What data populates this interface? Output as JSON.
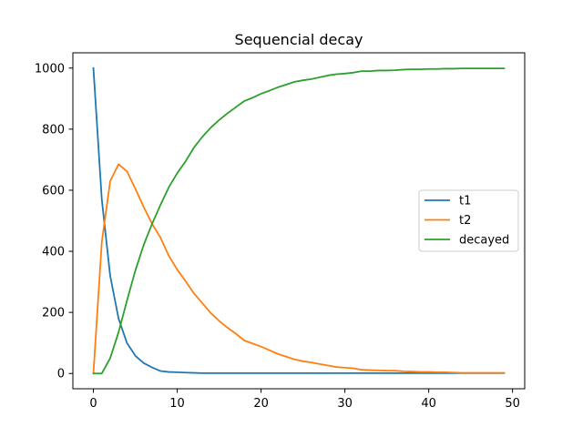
{
  "chart_data": {
    "type": "line",
    "title": "Sequencial decay",
    "xlabel": "",
    "ylabel": "",
    "xlim": [
      -2.45,
      51.45
    ],
    "ylim": [
      -50,
      1050
    ],
    "xticks": [
      0,
      10,
      20,
      30,
      40,
      50
    ],
    "yticks": [
      0,
      200,
      400,
      600,
      800,
      1000
    ],
    "grid": false,
    "legend_position": "center-right",
    "x": [
      0,
      1,
      2,
      3,
      4,
      5,
      6,
      7,
      8,
      9,
      10,
      11,
      12,
      13,
      14,
      15,
      16,
      17,
      18,
      19,
      20,
      21,
      22,
      23,
      24,
      25,
      26,
      27,
      28,
      29,
      30,
      31,
      32,
      33,
      34,
      35,
      36,
      37,
      38,
      39,
      40,
      41,
      42,
      43,
      44,
      45,
      46,
      47,
      48,
      49
    ],
    "series": [
      {
        "name": "t1",
        "color": "#1f77b4",
        "values": [
          1000,
          570,
          320,
          180,
          100,
          58,
          34,
          20,
          8,
          5,
          4,
          3,
          2,
          1,
          1,
          1,
          1,
          1,
          1,
          1,
          1,
          1,
          1,
          1,
          1,
          1,
          1,
          1,
          1,
          1,
          1,
          1,
          1,
          1,
          1,
          1,
          1,
          1,
          1,
          1,
          1,
          1,
          1,
          1,
          1,
          1,
          1,
          1,
          1,
          1
        ]
      },
      {
        "name": "t2",
        "color": "#ff7f0e",
        "values": [
          0,
          430,
          630,
          685,
          662,
          605,
          545,
          490,
          445,
          385,
          340,
          302,
          262,
          230,
          198,
          172,
          150,
          130,
          108,
          98,
          88,
          76,
          64,
          55,
          46,
          40,
          36,
          31,
          26,
          21,
          19,
          17,
          12,
          11,
          10,
          9,
          9,
          7,
          6,
          5,
          5,
          4,
          4,
          3,
          2,
          2,
          2,
          2,
          2,
          2
        ]
      },
      {
        "name": "decayed",
        "color": "#2ca02c",
        "values": [
          0,
          0,
          50,
          135,
          238,
          337,
          421,
          490,
          552,
          610,
          656,
          695,
          740,
          775,
          805,
          830,
          852,
          872,
          892,
          903,
          916,
          926,
          937,
          946,
          955,
          960,
          964,
          970,
          976,
          980,
          982,
          985,
          990,
          990,
          992,
          992,
          993,
          995,
          996,
          996,
          997,
          997,
          998,
          998,
          999,
          999,
          999,
          999,
          999,
          999
        ]
      }
    ]
  }
}
